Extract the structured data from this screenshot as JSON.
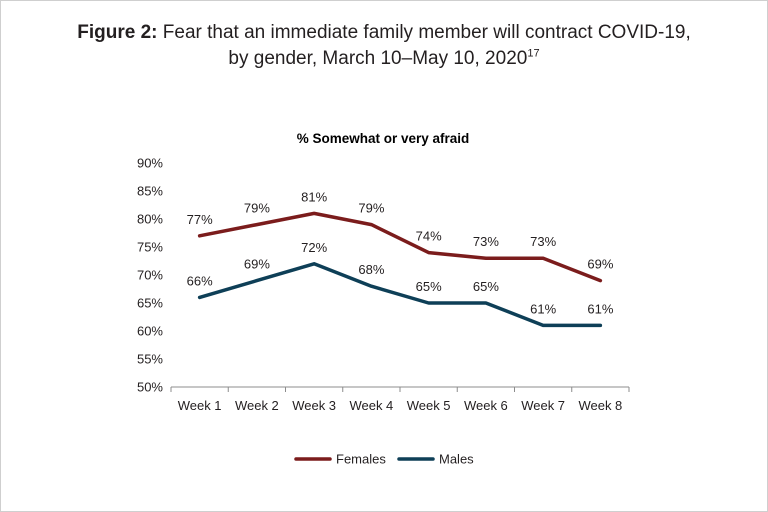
{
  "figure": {
    "label": "Figure 2:",
    "title_line1": "Fear that an immediate family member will contract COVID-19,",
    "title_line2": "by gender, March 10–May 10, 2020",
    "footnote": "17"
  },
  "chart_data": {
    "type": "line",
    "title": "% Somewhat or very afraid",
    "xlabel": "",
    "ylabel": "",
    "categories": [
      "Week 1",
      "Week 2",
      "Week 3",
      "Week 4",
      "Week 5",
      "Week 6",
      "Week 7",
      "Week 8"
    ],
    "y_ticks": [
      "50%",
      "55%",
      "60%",
      "65%",
      "70%",
      "75%",
      "80%",
      "85%",
      "90%"
    ],
    "ylim": [
      50,
      90
    ],
    "grid": false,
    "legend_position": "bottom",
    "series": [
      {
        "name": "Females",
        "color": "#7b1c1c",
        "values": [
          77,
          79,
          81,
          79,
          74,
          73,
          73,
          69
        ],
        "labels": [
          "77%",
          "79%",
          "81%",
          "79%",
          "74%",
          "73%",
          "73%",
          "69%"
        ]
      },
      {
        "name": "Males",
        "color": "#0e3f57",
        "values": [
          66,
          69,
          72,
          68,
          65,
          65,
          61,
          61
        ],
        "labels": [
          "66%",
          "69%",
          "72%",
          "68%",
          "65%",
          "65%",
          "61%",
          "61%"
        ]
      }
    ]
  }
}
